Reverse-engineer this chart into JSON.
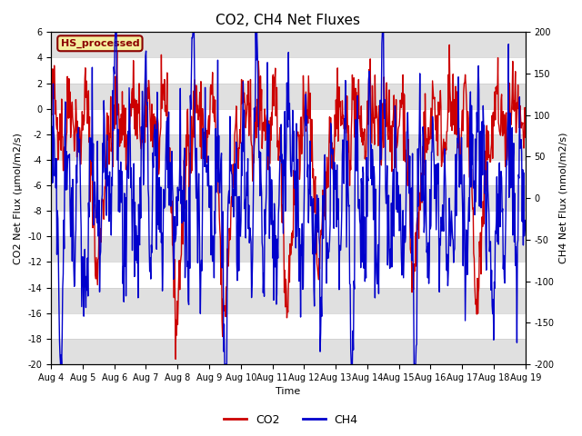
{
  "title": "CO2, CH4 Net Fluxes",
  "xlabel": "Time",
  "ylabel_left": "CO2 Net Flux (μmol/m2/s)",
  "ylabel_right": "CH4 Net Flux (nmol/m2/s)",
  "ylim_left": [
    -20,
    6
  ],
  "ylim_right": [
    -200,
    200
  ],
  "yticks_left": [
    -20,
    -18,
    -16,
    -14,
    -12,
    -10,
    -8,
    -6,
    -4,
    -2,
    0,
    2,
    4,
    6
  ],
  "yticks_right": [
    -200,
    -150,
    -100,
    -50,
    0,
    50,
    100,
    150,
    200
  ],
  "xticklabels": [
    "Aug 4",
    "Aug 5",
    "Aug 6",
    "Aug 7",
    "Aug 8",
    "Aug 9",
    "Aug 10",
    "Aug 11",
    "Aug 12",
    "Aug 13",
    "Aug 14",
    "Aug 15",
    "Aug 16",
    "Aug 17",
    "Aug 18",
    "Aug 19"
  ],
  "co2_color": "#cc0000",
  "ch4_color": "#0000cc",
  "co2_linewidth": 1.0,
  "ch4_linewidth": 1.0,
  "legend_label_box": "HS_processed",
  "legend_co2": "CO2",
  "legend_ch4": "CH4",
  "background_color": "#ffffff",
  "grid_color": "#cccccc",
  "gray_band_color": "#e0e0e0",
  "title_fontsize": 11,
  "axis_label_fontsize": 8,
  "tick_fontsize": 7,
  "legend_fontsize": 9,
  "seed": 42,
  "n_points": 900,
  "days": 15
}
